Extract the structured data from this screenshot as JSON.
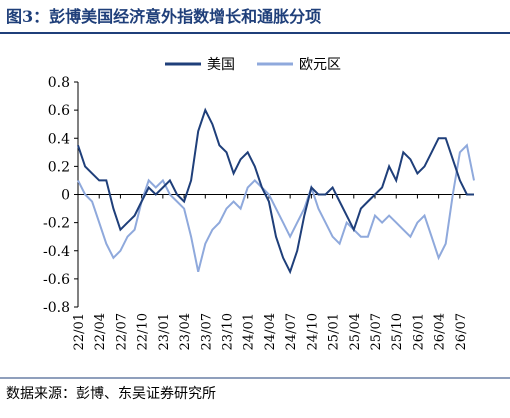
{
  "chart_data": {
    "type": "line",
    "title": "图3：彭博美国经济意外指数增长和通胀分项",
    "source": "数据来源：彭博、东吴证券研究所",
    "categories": [
      "22/01",
      null,
      null,
      "22/04",
      null,
      null,
      "22/07",
      null,
      null,
      "22/10",
      null,
      null,
      "23/01",
      null,
      null,
      "23/04",
      null,
      null,
      "23/07",
      null,
      null,
      "23/10",
      null,
      null,
      "24/01",
      null,
      null,
      "24/04",
      null,
      null,
      "24/07",
      null,
      null,
      "24/10",
      null,
      null,
      "25/01",
      null,
      null,
      "25/04",
      null,
      null,
      "25/07",
      null,
      null,
      "25/10",
      null,
      null,
      "26/01",
      null,
      null,
      "26/04",
      null,
      null,
      "26/07",
      null,
      null
    ],
    "series": [
      {
        "name": "美国",
        "color": "#1f3f7a",
        "values": [
          0.35,
          0.2,
          0.15,
          0.1,
          0.1,
          -0.1,
          -0.25,
          -0.2,
          -0.15,
          -0.05,
          0.05,
          0.0,
          0.05,
          0.1,
          0.0,
          -0.05,
          0.1,
          0.45,
          0.6,
          0.5,
          0.35,
          0.3,
          0.15,
          0.25,
          0.3,
          0.2,
          0.05,
          -0.05,
          -0.3,
          -0.45,
          -0.55,
          -0.4,
          -0.15,
          0.05,
          0.0,
          0.0,
          0.05,
          -0.05,
          -0.15,
          -0.25,
          -0.1,
          -0.05,
          0.0,
          0.05,
          0.2,
          0.1,
          0.3,
          0.25,
          0.15,
          0.2,
          0.3,
          0.4,
          0.4,
          0.25,
          0.1,
          0.0,
          0.0
        ]
      },
      {
        "name": "欧元区",
        "color": "#8fa9dc",
        "values": [
          0.1,
          0.0,
          -0.05,
          -0.2,
          -0.35,
          -0.45,
          -0.4,
          -0.3,
          -0.25,
          -0.05,
          0.1,
          0.05,
          0.1,
          0.0,
          -0.05,
          -0.1,
          -0.3,
          -0.55,
          -0.35,
          -0.25,
          -0.2,
          -0.1,
          -0.05,
          -0.1,
          0.05,
          0.1,
          0.05,
          0.0,
          -0.1,
          -0.2,
          -0.3,
          -0.2,
          -0.1,
          0.05,
          -0.1,
          -0.2,
          -0.3,
          -0.35,
          -0.2,
          -0.25,
          -0.3,
          -0.3,
          -0.15,
          -0.2,
          -0.15,
          -0.2,
          -0.25,
          -0.3,
          -0.2,
          -0.15,
          -0.3,
          -0.45,
          -0.35,
          0.0,
          0.3,
          0.35,
          0.1
        ]
      }
    ],
    "ylim": [
      -0.8,
      0.8
    ],
    "yticks": [
      -0.8,
      -0.6,
      -0.4,
      -0.2,
      0,
      0.2,
      0.4,
      0.6,
      0.8
    ],
    "legend": "top"
  }
}
